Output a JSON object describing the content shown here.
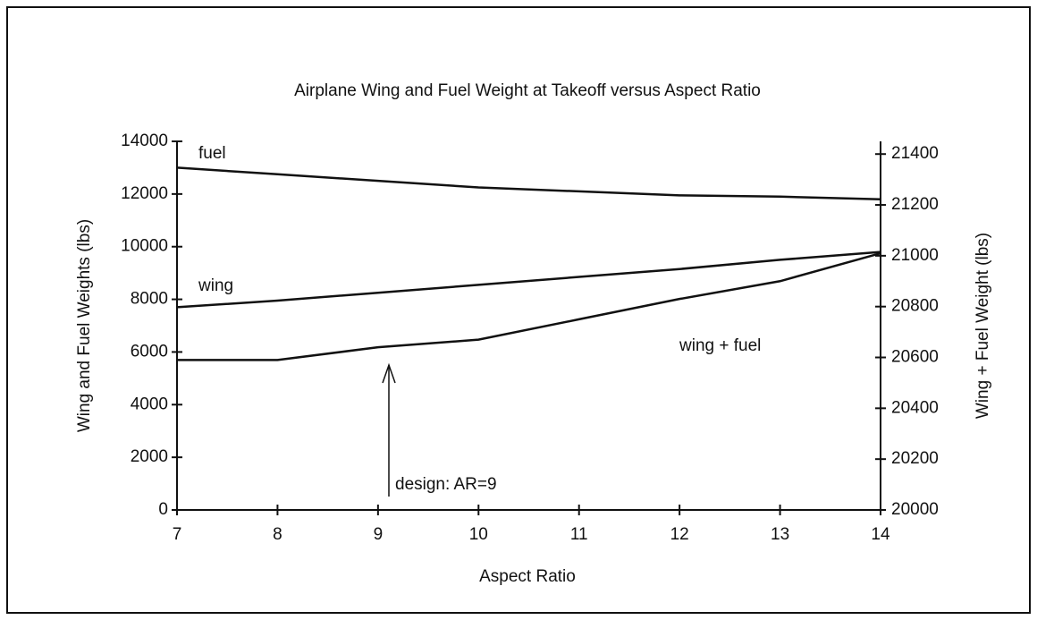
{
  "chart_data": {
    "type": "line",
    "title": "Airplane Wing and Fuel Weight at Takeoff versus Aspect Ratio",
    "x_label": "Aspect Ratio",
    "y_label": "Wing and Fuel Weights (lbs)",
    "y2_label": "Wing + Fuel Weight (lbs)",
    "x": [
      7,
      8,
      9,
      10,
      11,
      12,
      13,
      14
    ],
    "series": [
      {
        "name": "fuel",
        "color": "#111111",
        "values": [
          13000,
          12750,
          12500,
          12250,
          12100,
          11950,
          11900,
          11800
        ]
      },
      {
        "name": "wing",
        "color": "#111111",
        "values": [
          7700,
          7950,
          8250,
          8550,
          8850,
          9150,
          9500,
          9800
        ]
      },
      {
        "name": "wing + fuel",
        "color": "#111111",
        "axis": "y2",
        "values": [
          20590,
          20590,
          20640,
          20670,
          20750,
          20830,
          20900,
          21010
        ]
      }
    ],
    "annotations": [
      "design: AR=9"
    ],
    "xlim": [
      7,
      14
    ],
    "xticks": [
      7,
      8,
      9,
      10,
      11,
      12,
      13,
      14
    ],
    "ylim": [
      0,
      14000
    ],
    "yticks": [
      0,
      2000,
      4000,
      6000,
      8000,
      10000,
      12000,
      14000
    ],
    "y2lim": [
      20000,
      21450
    ],
    "y2ticks": [
      20000,
      20200,
      20400,
      20600,
      20800,
      21000,
      21200,
      21400
    ],
    "grid": false
  }
}
